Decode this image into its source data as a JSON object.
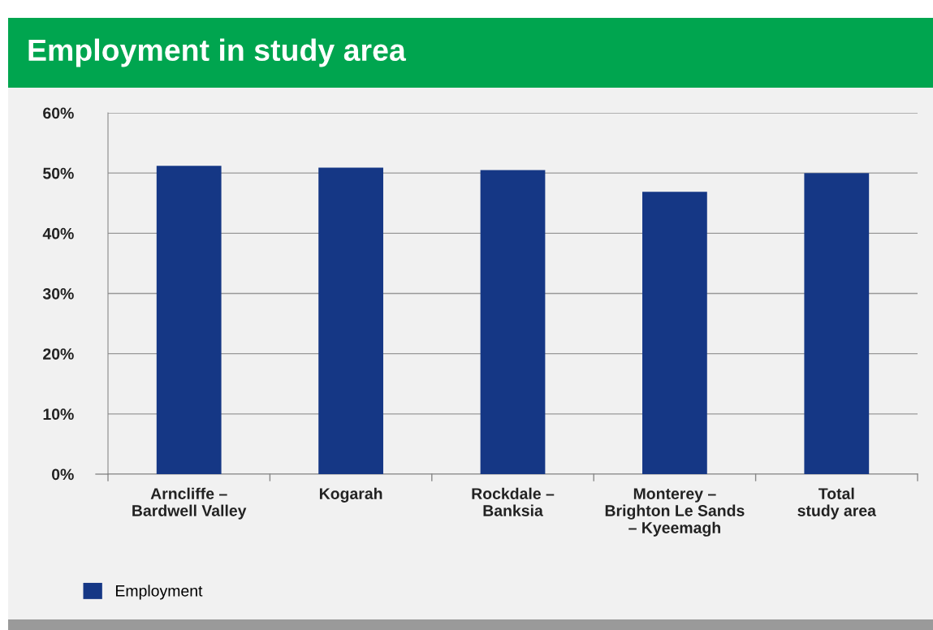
{
  "chart_data": {
    "type": "bar",
    "title": "Employment in study area",
    "categories": [
      "Arncliffe –\nBardwell Valley",
      "Kogarah",
      "Rockdale –\nBanksia",
      "Monterey –\nBrighton Le Sands\n– Kyeemagh",
      "Total\nstudy area"
    ],
    "series": [
      {
        "name": "Employment",
        "color": "#153785",
        "values": [
          51.2,
          50.9,
          50.5,
          46.9,
          50.0
        ]
      }
    ],
    "ylim": [
      0,
      60
    ],
    "yticks": [
      {
        "value": 0,
        "label": "0%"
      },
      {
        "value": 10,
        "label": "10%"
      },
      {
        "value": 20,
        "label": "20%"
      },
      {
        "value": 30,
        "label": "30%"
      },
      {
        "value": 40,
        "label": "40%"
      },
      {
        "value": 50,
        "label": "50%"
      },
      {
        "value": 60,
        "label": "60%"
      }
    ],
    "grid": "y",
    "legend": "bottom left"
  }
}
